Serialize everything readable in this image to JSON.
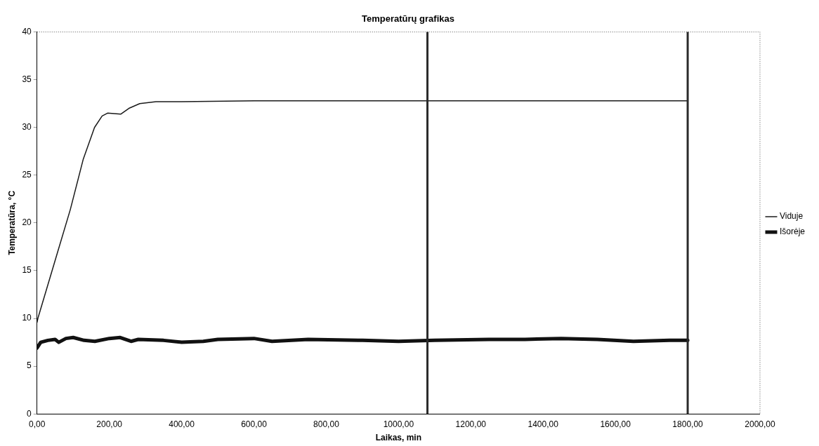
{
  "chart_data": {
    "type": "line",
    "title": "Temperatūrų grafikas",
    "xlabel": "Laikas, min",
    "ylabel": "Temperatūra, °C",
    "xlim": [
      0,
      2000
    ],
    "xticks": [
      {
        "value": 0,
        "label": "0,00"
      },
      {
        "value": 200,
        "label": "200,00"
      },
      {
        "value": 400,
        "label": "400,00"
      },
      {
        "value": 600,
        "label": "600,00"
      },
      {
        "value": 800,
        "label": "800,00"
      },
      {
        "value": 1000,
        "label": "1000,00"
      },
      {
        "value": 1200,
        "label": "1200,00"
      },
      {
        "value": 1400,
        "label": "1400,00"
      },
      {
        "value": 1600,
        "label": "1600,00"
      },
      {
        "value": 1800,
        "label": "1800,00"
      },
      {
        "value": 2000,
        "label": "2000,00"
      }
    ],
    "ylim": [
      0,
      40
    ],
    "yticks": [
      0,
      5,
      10,
      15,
      20,
      25,
      30,
      35,
      40
    ],
    "grid": false,
    "legend": "right",
    "marker": "none",
    "line_style": "solid",
    "series": [
      {
        "name": "Viduje",
        "color": "#1a1a1a",
        "x": [
          0,
          3,
          55,
          92,
          128,
          159,
          180,
          195,
          232,
          254,
          284,
          329,
          400,
          600,
          800,
          1000,
          1200,
          1400,
          1600,
          1800
        ],
        "values": [
          9.6,
          10.1,
          16.7,
          21.4,
          26.7,
          30,
          31.2,
          31.5,
          31.4,
          32,
          32.5,
          32.7,
          32.7,
          32.8,
          32.8,
          32.8,
          32.8,
          32.8,
          32.8,
          32.8
        ]
      },
      {
        "name": "Išorėje",
        "color": "#111111",
        "x": [
          0,
          10,
          30,
          50,
          60,
          80,
          100,
          130,
          160,
          200,
          230,
          260,
          280,
          350,
          400,
          460,
          500,
          600,
          650,
          750,
          900,
          1000,
          1100,
          1250,
          1350,
          1450,
          1550,
          1650,
          1750,
          1800
        ],
        "values": [
          6.9,
          7.5,
          7.7,
          7.8,
          7.5,
          7.9,
          8,
          7.7,
          7.6,
          7.9,
          8,
          7.6,
          7.8,
          7.7,
          7.5,
          7.6,
          7.8,
          7.9,
          7.6,
          7.8,
          7.7,
          7.6,
          7.7,
          7.8,
          7.8,
          7.9,
          7.8,
          7.6,
          7.7,
          7.7
        ]
      }
    ],
    "ref_lines": [
      {
        "axis": "x",
        "value": 1080,
        "color": "#2a2a2a"
      },
      {
        "axis": "x",
        "value": 1800,
        "color": "#2a2a2a"
      }
    ]
  }
}
